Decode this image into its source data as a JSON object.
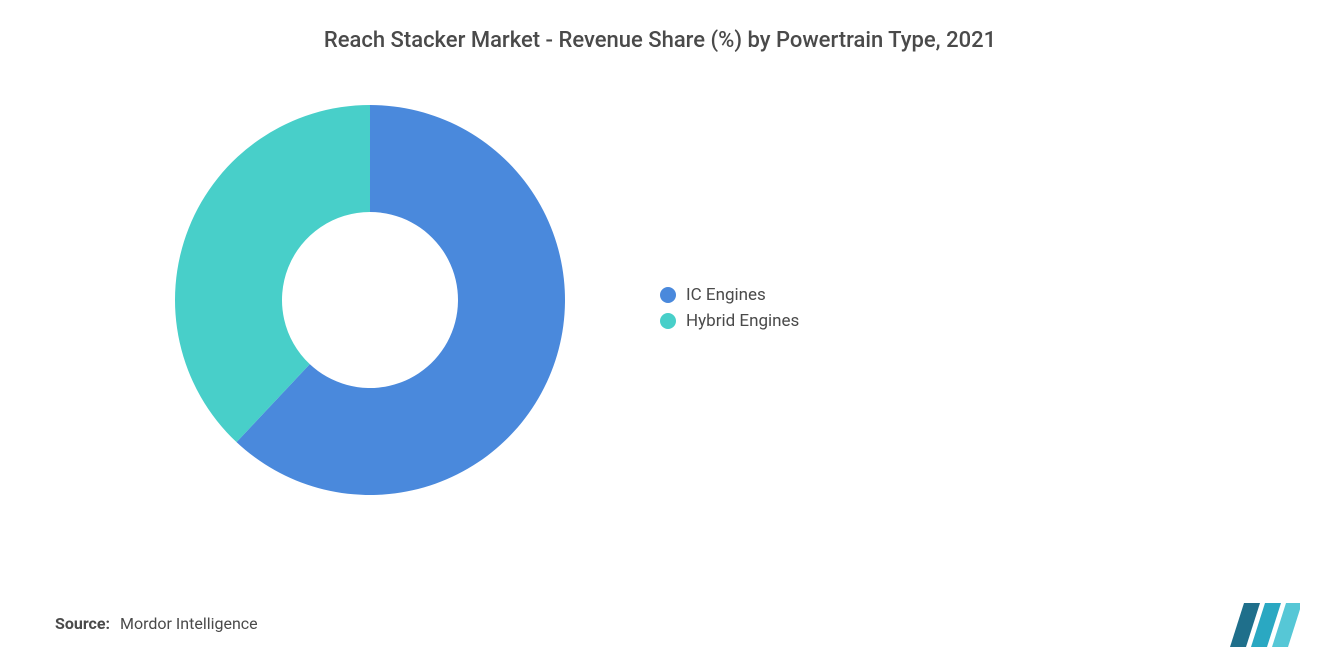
{
  "title": "Reach Stacker Market - Revenue Share (%) by Powertrain Type, 2021",
  "chart": {
    "type": "donut",
    "outer_radius": 195,
    "inner_radius": 88,
    "background_color": "#ffffff",
    "slices": [
      {
        "label": "IC Engines",
        "value": 62,
        "color": "#4a89dc"
      },
      {
        "label": "Hybrid Engines",
        "value": 38,
        "color": "#48cfc9"
      }
    ],
    "title_fontsize": 22,
    "title_color": "#4a4a4a",
    "legend_fontsize": 17,
    "legend_color": "#4a4a4a",
    "legend_swatch_shape": "circle"
  },
  "source": {
    "label": "Source:",
    "value": "Mordor Intelligence"
  },
  "logo": {
    "name": "mordor-intelligence-logo",
    "bar_colors": [
      "#1f6f8b",
      "#2aa8c2",
      "#56c7d6"
    ]
  }
}
